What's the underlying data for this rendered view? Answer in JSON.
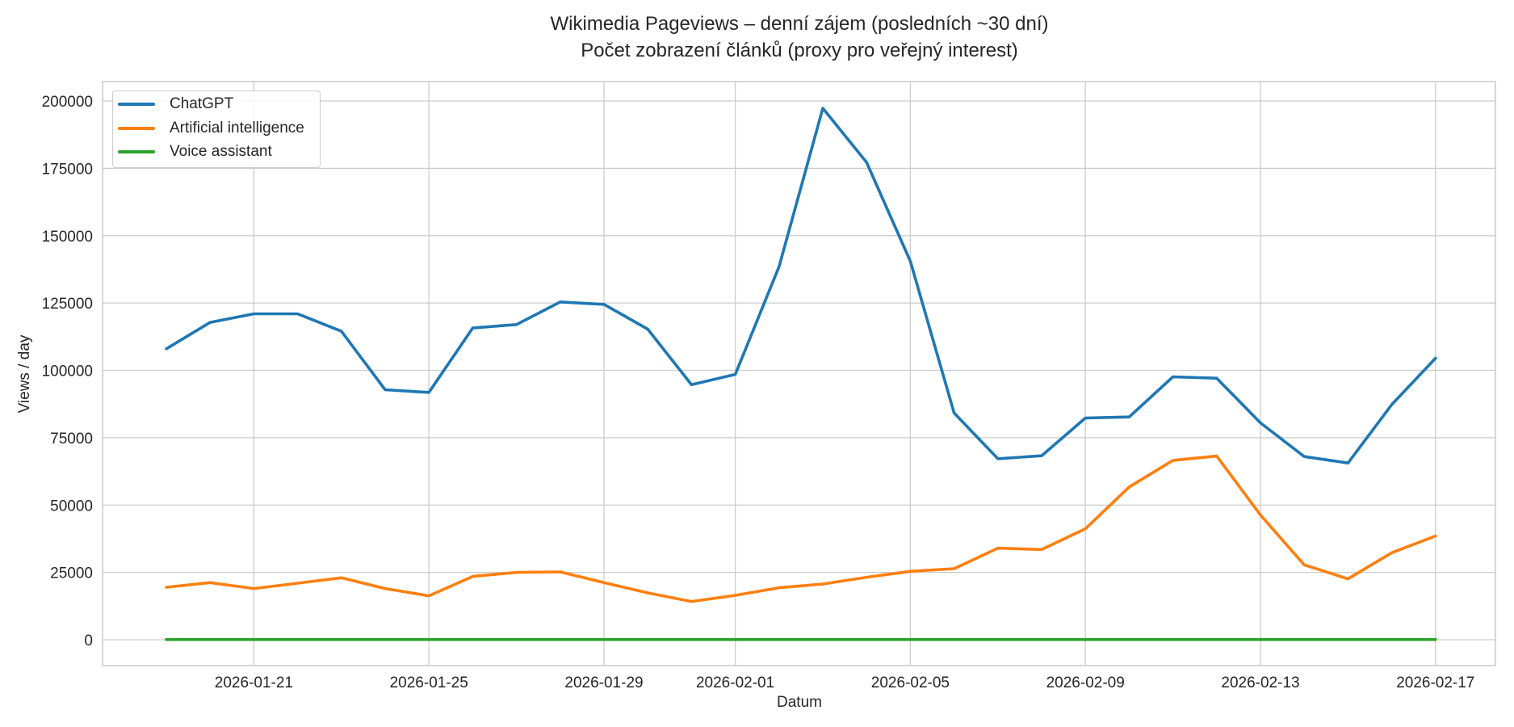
{
  "chart_data": {
    "type": "line",
    "title": "Wikimedia Pageviews – denní zájem (posledních ~30 dní)",
    "subtitle": "Počet zobrazení článků (proxy pro veřejný interest)",
    "xlabel": "Datum",
    "ylabel": "Views / day",
    "ylim": [
      -10000,
      207000
    ],
    "yticks": [
      "0",
      "25000",
      "50000",
      "75000",
      "100000",
      "125000",
      "150000",
      "175000",
      "200000"
    ],
    "xticks": [
      "2026-01-21",
      "2026-01-25",
      "2026-01-29",
      "2026-02-01",
      "2026-02-05",
      "2026-02-09",
      "2026-02-13",
      "2026-02-17"
    ],
    "grid": true,
    "legend_position": "upper left",
    "x": [
      "2026-01-19",
      "2026-01-20",
      "2026-01-21",
      "2026-01-22",
      "2026-01-23",
      "2026-01-24",
      "2026-01-25",
      "2026-01-26",
      "2026-01-27",
      "2026-01-28",
      "2026-01-29",
      "2026-01-30",
      "2026-01-31",
      "2026-02-01",
      "2026-02-02",
      "2026-02-03",
      "2026-02-04",
      "2026-02-05",
      "2026-02-06",
      "2026-02-07",
      "2026-02-08",
      "2026-02-09",
      "2026-02-10",
      "2026-02-11",
      "2026-02-12",
      "2026-02-13",
      "2026-02-14",
      "2026-02-15",
      "2026-02-16",
      "2026-02-17"
    ],
    "series": [
      {
        "name": "ChatGPT",
        "color": "#1f77b4",
        "values": [
          108000,
          117800,
          121000,
          121000,
          114500,
          92800,
          91800,
          115700,
          117000,
          125400,
          124500,
          115300,
          94700,
          98500,
          138500,
          197300,
          177200,
          140500,
          84200,
          67200,
          68300,
          82300,
          82700,
          97600,
          97100,
          80500,
          68000,
          65600,
          87300,
          104500
        ]
      },
      {
        "name": "Artificial intelligence",
        "color": "#ff7f0e",
        "values": [
          19500,
          21200,
          19000,
          21000,
          23000,
          19000,
          16300,
          23500,
          25000,
          25200,
          21200,
          17400,
          14200,
          16500,
          19300,
          20700,
          23200,
          25400,
          26400,
          34000,
          33500,
          41200,
          56700,
          66600,
          68200,
          46300,
          27800,
          22600,
          32300,
          38500
        ]
      },
      {
        "name": "Voice assistant",
        "color": "#2ca02c",
        "values": [
          100,
          100,
          100,
          100,
          100,
          100,
          100,
          100,
          100,
          100,
          100,
          100,
          100,
          100,
          100,
          100,
          100,
          100,
          100,
          100,
          100,
          100,
          100,
          100,
          100,
          100,
          100,
          100,
          100,
          100
        ]
      }
    ]
  },
  "header": {
    "title": "Wikimedia Pageviews – denní zájem (posledních ~30 dní)",
    "subtitle": "Počet zobrazení článků (proxy pro veřejný interest)"
  },
  "legend": {
    "items": [
      {
        "label": "ChatGPT",
        "color": "#1f77b4"
      },
      {
        "label": "Artificial intelligence",
        "color": "#ff7f0e"
      },
      {
        "label": "Voice assistant",
        "color": "#2ca02c"
      }
    ]
  },
  "axes": {
    "xlabel": "Datum",
    "ylabel": "Views / day"
  }
}
